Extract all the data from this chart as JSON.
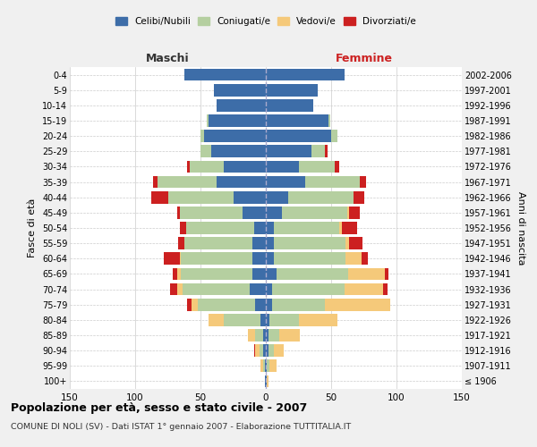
{
  "age_groups": [
    "100+",
    "95-99",
    "90-94",
    "85-89",
    "80-84",
    "75-79",
    "70-74",
    "65-69",
    "60-64",
    "55-59",
    "50-54",
    "45-49",
    "40-44",
    "35-39",
    "30-34",
    "25-29",
    "20-24",
    "15-19",
    "10-14",
    "5-9",
    "0-4"
  ],
  "birth_years": [
    "≤ 1906",
    "1907-1911",
    "1912-1916",
    "1917-1921",
    "1922-1926",
    "1927-1931",
    "1932-1936",
    "1937-1941",
    "1942-1946",
    "1947-1951",
    "1952-1956",
    "1957-1961",
    "1962-1966",
    "1967-1971",
    "1972-1976",
    "1977-1981",
    "1982-1986",
    "1987-1991",
    "1992-1996",
    "1997-2001",
    "2002-2006"
  ],
  "males": {
    "celibi": [
      1,
      1,
      2,
      2,
      4,
      8,
      12,
      10,
      10,
      10,
      9,
      18,
      25,
      38,
      32,
      42,
      47,
      44,
      38,
      40,
      62
    ],
    "coniugati": [
      0,
      1,
      3,
      6,
      28,
      44,
      52,
      55,
      55,
      52,
      52,
      48,
      50,
      45,
      26,
      8,
      3,
      1,
      0,
      0,
      0
    ],
    "vedovi": [
      0,
      2,
      3,
      6,
      12,
      5,
      4,
      3,
      1,
      0,
      0,
      0,
      0,
      0,
      0,
      0,
      0,
      0,
      0,
      0,
      0
    ],
    "divorziati": [
      0,
      0,
      1,
      0,
      0,
      3,
      5,
      3,
      12,
      5,
      5,
      2,
      13,
      3,
      2,
      0,
      0,
      0,
      0,
      0,
      0
    ]
  },
  "females": {
    "nubili": [
      1,
      1,
      2,
      2,
      3,
      5,
      5,
      8,
      6,
      6,
      6,
      12,
      17,
      30,
      25,
      35,
      50,
      48,
      36,
      40,
      60
    ],
    "coniugate": [
      0,
      2,
      4,
      8,
      22,
      40,
      55,
      55,
      55,
      55,
      50,
      50,
      50,
      42,
      28,
      10,
      5,
      1,
      0,
      0,
      0
    ],
    "vedove": [
      1,
      5,
      8,
      16,
      30,
      50,
      30,
      28,
      12,
      3,
      2,
      2,
      0,
      0,
      0,
      0,
      0,
      0,
      0,
      0,
      0
    ],
    "divorziate": [
      0,
      0,
      0,
      0,
      0,
      0,
      3,
      3,
      5,
      10,
      12,
      8,
      8,
      5,
      3,
      2,
      0,
      0,
      0,
      0,
      0
    ]
  },
  "colors": {
    "celibi": "#3d6da8",
    "coniugati": "#b5cfa0",
    "vedovi": "#f5c97a",
    "divorziati": "#cc2020"
  },
  "xlim": 150,
  "title": "Popolazione per età, sesso e stato civile - 2007",
  "subtitle": "COMUNE DI NOLI (SV) - Dati ISTAT 1° gennaio 2007 - Elaborazione TUTTITALIA.IT",
  "ylabel_left": "Fasce di età",
  "ylabel_right": "Anni di nascita",
  "xlabel_left": "Maschi",
  "xlabel_right": "Femmine",
  "legend_labels": [
    "Celibi/Nubili",
    "Coniugati/e",
    "Vedovi/e",
    "Divorziati/e"
  ],
  "bg_color": "#f0f0f0",
  "plot_bg": "#ffffff",
  "bar_height": 0.8
}
